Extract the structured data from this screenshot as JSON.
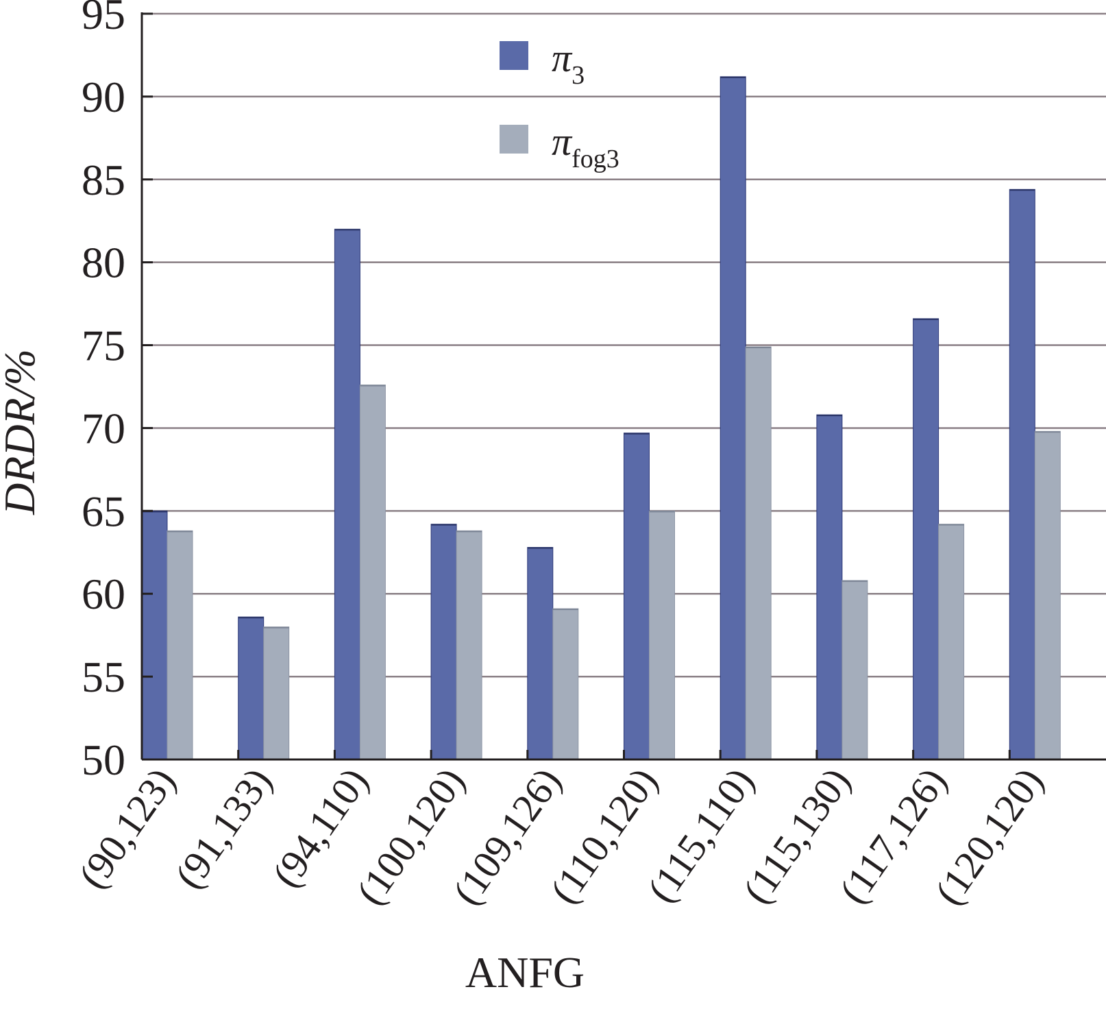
{
  "chart_data": {
    "type": "bar",
    "title": "",
    "xlabel": "ANFG",
    "ylabel": "DRDR/%",
    "ylim": [
      50,
      95
    ],
    "yticks": [
      "50",
      "55",
      "60",
      "65",
      "70",
      "75",
      "80",
      "85",
      "90",
      "95"
    ],
    "grid": true,
    "legend_position": "top-center",
    "categories": [
      "(90,123)",
      "(91,133)",
      "(94,110)",
      "(100,120)",
      "(109,126)",
      "(110,120)",
      "(115,110)",
      "(115,130)",
      "(117,126)",
      "(120,120)"
    ],
    "series": [
      {
        "name": "π",
        "name_subscript": "3",
        "color": "#5a6aa8",
        "values": [
          65.0,
          58.6,
          82.0,
          64.2,
          62.8,
          69.7,
          91.2,
          70.8,
          76.6,
          84.4
        ]
      },
      {
        "name": "π",
        "name_subscript": "fog3",
        "color": "#a4adbb",
        "values": [
          63.8,
          58.0,
          72.6,
          63.8,
          59.1,
          65.0,
          74.9,
          60.8,
          64.2,
          69.8
        ]
      }
    ]
  }
}
